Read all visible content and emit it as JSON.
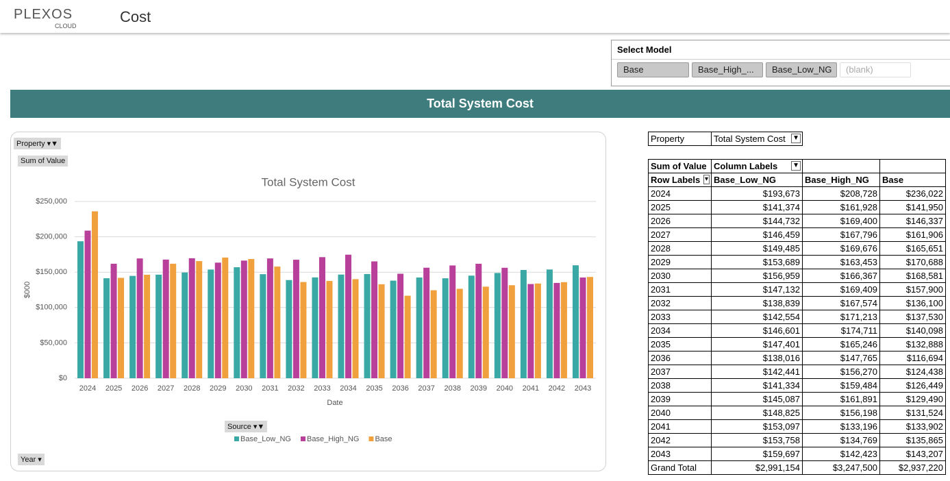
{
  "header": {
    "logo": "PLEXOS",
    "logo_sub": "CLOUD",
    "title": "Cost"
  },
  "slicer": {
    "title": "Select Model",
    "items": [
      "Base",
      "Base_High_...",
      "Base_Low_NG",
      "(blank)"
    ]
  },
  "banner": "Total System Cost",
  "pivot_buttons": {
    "property": "Property",
    "sum": "Sum of Value",
    "source": "Source",
    "year": "Year"
  },
  "chart_data": {
    "type": "bar",
    "title": "Total System Cost",
    "x_label": "Date",
    "y_label": "$000",
    "categories": [
      "2024",
      "2025",
      "2026",
      "2027",
      "2028",
      "2029",
      "2030",
      "2031",
      "2032",
      "2033",
      "2034",
      "2035",
      "2036",
      "2037",
      "2038",
      "2039",
      "2040",
      "2041",
      "2042",
      "2043"
    ],
    "ylim": [
      0,
      250000
    ],
    "yticks": [
      {
        "value": 0,
        "label": "$0"
      },
      {
        "value": 50000,
        "label": "$50,000"
      },
      {
        "value": 100000,
        "label": "$100,000"
      },
      {
        "value": 150000,
        "label": "$150,000"
      },
      {
        "value": 200000,
        "label": "$200,000"
      },
      {
        "value": 250000,
        "label": "$250,000"
      }
    ],
    "grid": true,
    "series": [
      {
        "name": "Base_Low_NG",
        "color": "#3aa8a4",
        "values": [
          193673,
          141374,
          144732,
          146459,
          149485,
          153689,
          156959,
          147132,
          138839,
          142554,
          146601,
          147401,
          138016,
          142441,
          141334,
          145087,
          148825,
          153097,
          153758,
          159697
        ],
        "value_labels": [
          "$193,673",
          "$141,374",
          "$144,732",
          "$146,459",
          "$149,485",
          "$153,689",
          "$156,959",
          "$147,132",
          "$138,839",
          "$142,554",
          "$146,601",
          "$147,401",
          "$138,016",
          "$142,441",
          "$141,334",
          "$145,087",
          "$148,825",
          "$153,097",
          "$153,758",
          "$159,697"
        ]
      },
      {
        "name": "Base_High_NG",
        "color": "#b8409a",
        "values": [
          208728,
          161928,
          169400,
          167796,
          169676,
          163453,
          166367,
          169409,
          167574,
          171213,
          174711,
          165246,
          147765,
          156270,
          159484,
          161891,
          156198,
          133196,
          134769,
          142423
        ],
        "value_labels": [
          "$208,728",
          "$161,928",
          "$169,400",
          "$167,796",
          "$169,676",
          "$163,453",
          "$166,367",
          "$169,409",
          "$167,574",
          "$171,213",
          "$174,711",
          "$165,246",
          "$147,765",
          "$156,270",
          "$159,484",
          "$161,891",
          "$156,198",
          "$133,196",
          "$134,769",
          "$142,423"
        ]
      },
      {
        "name": "Base",
        "color": "#f0a03c",
        "values": [
          236022,
          141950,
          146337,
          161906,
          165651,
          170688,
          168581,
          157900,
          136100,
          137530,
          140098,
          132888,
          116694,
          124438,
          126449,
          129490,
          131524,
          133902,
          135865,
          143207
        ],
        "value_labels": [
          "$236,022",
          "$141,950",
          "$146,337",
          "$161,906",
          "$165,651",
          "$170,688",
          "$168,581",
          "$157,900",
          "$136,100",
          "$137,530",
          "$140,098",
          "$132,888",
          "$116,694",
          "$124,438",
          "$126,449",
          "$129,490",
          "$131,524",
          "$133,902",
          "$135,865",
          "$143,207"
        ]
      }
    ]
  },
  "table": {
    "filter_label": "Property",
    "filter_value": "Total System Cost",
    "value_header": "Sum of Value",
    "column_header": "Column Labels",
    "row_header": "Row Labels",
    "grand_total_label": "Grand Total",
    "grand_totals": [
      "$2,991,154",
      "$3,247,500",
      "$2,937,220"
    ]
  }
}
